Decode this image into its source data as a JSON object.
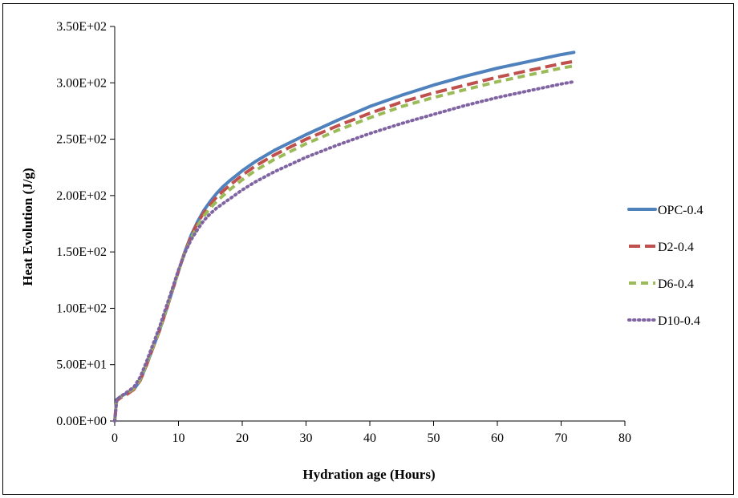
{
  "chart_data": {
    "type": "line",
    "title": "",
    "xlabel": "Hydration age (Hours)",
    "ylabel": "Heat Evolution (J/g)",
    "xlim": [
      0,
      80
    ],
    "ylim": [
      0,
      350
    ],
    "x_ticks": [
      0,
      10,
      20,
      30,
      40,
      50,
      60,
      70,
      80
    ],
    "x_tick_labels": [
      "0",
      "10",
      "20",
      "30",
      "40",
      "50",
      "60",
      "70",
      "80"
    ],
    "y_ticks": [
      0,
      50,
      100,
      150,
      200,
      250,
      300,
      350
    ],
    "y_tick_labels": [
      "0.00E+00",
      "5.00E+01",
      "1.00E+02",
      "1.50E+02",
      "2.00E+02",
      "2.50E+02",
      "3.00E+02",
      "3.50E+02"
    ],
    "grid": false,
    "legend_position": "right",
    "series": [
      {
        "name": "OPC-0.4",
        "color": "#4F81BD",
        "dash": "solid",
        "x": [
          0,
          0.3,
          1,
          2,
          3,
          4,
          5,
          6,
          7,
          8,
          9,
          10,
          11,
          12,
          13,
          14,
          15,
          16,
          17,
          18,
          20,
          22,
          25,
          30,
          35,
          40,
          45,
          50,
          55,
          60,
          65,
          70,
          72
        ],
        "y": [
          0,
          19,
          22,
          25,
          28,
          36,
          50,
          65,
          80,
          97,
          115,
          133,
          150,
          165,
          177,
          187,
          195,
          202,
          208,
          213,
          222,
          230,
          240,
          254,
          267,
          279,
          289,
          298,
          306,
          313,
          319,
          325,
          327
        ]
      },
      {
        "name": "D2-0.4",
        "color": "#C0504D",
        "dash": "long",
        "x": [
          0,
          0.3,
          1,
          2,
          3,
          4,
          5,
          6,
          7,
          8,
          9,
          10,
          11,
          12,
          13,
          14,
          15,
          16,
          17,
          18,
          20,
          22,
          25,
          30,
          35,
          40,
          45,
          50,
          55,
          60,
          65,
          70,
          72
        ],
        "y": [
          0,
          18,
          21,
          24,
          28,
          36,
          50,
          65,
          80,
          97,
          115,
          133,
          150,
          164,
          176,
          185,
          192,
          199,
          204,
          209,
          218,
          226,
          236,
          250,
          262,
          273,
          283,
          291,
          298,
          305,
          311,
          317,
          319
        ]
      },
      {
        "name": "D6-0.4",
        "color": "#9BBB59",
        "dash": "medium",
        "x": [
          0,
          0.3,
          1,
          2,
          3,
          4,
          5,
          6,
          7,
          8,
          9,
          10,
          11,
          12,
          13,
          14,
          15,
          16,
          17,
          18,
          20,
          22,
          25,
          30,
          35,
          40,
          45,
          50,
          55,
          60,
          65,
          70,
          72
        ],
        "y": [
          0,
          19,
          22,
          25,
          29,
          37,
          51,
          66,
          81,
          98,
          116,
          133,
          149,
          162,
          173,
          182,
          189,
          195,
          200,
          205,
          214,
          222,
          232,
          246,
          258,
          269,
          279,
          287,
          294,
          301,
          307,
          313,
          315
        ]
      },
      {
        "name": "D10-0.4",
        "color": "#8064A2",
        "dash": "dotted",
        "x": [
          0,
          0.3,
          1,
          2,
          3,
          4,
          5,
          6,
          7,
          8,
          9,
          10,
          11,
          12,
          13,
          14,
          15,
          16,
          17,
          18,
          20,
          22,
          25,
          30,
          35,
          40,
          45,
          50,
          55,
          60,
          65,
          70,
          72
        ],
        "y": [
          0,
          19,
          22,
          26,
          30,
          39,
          53,
          68,
          83,
          100,
          117,
          134,
          149,
          161,
          170,
          178,
          184,
          189,
          193,
          197,
          205,
          212,
          221,
          234,
          245,
          255,
          264,
          272,
          280,
          287,
          293,
          299,
          301
        ]
      }
    ]
  }
}
